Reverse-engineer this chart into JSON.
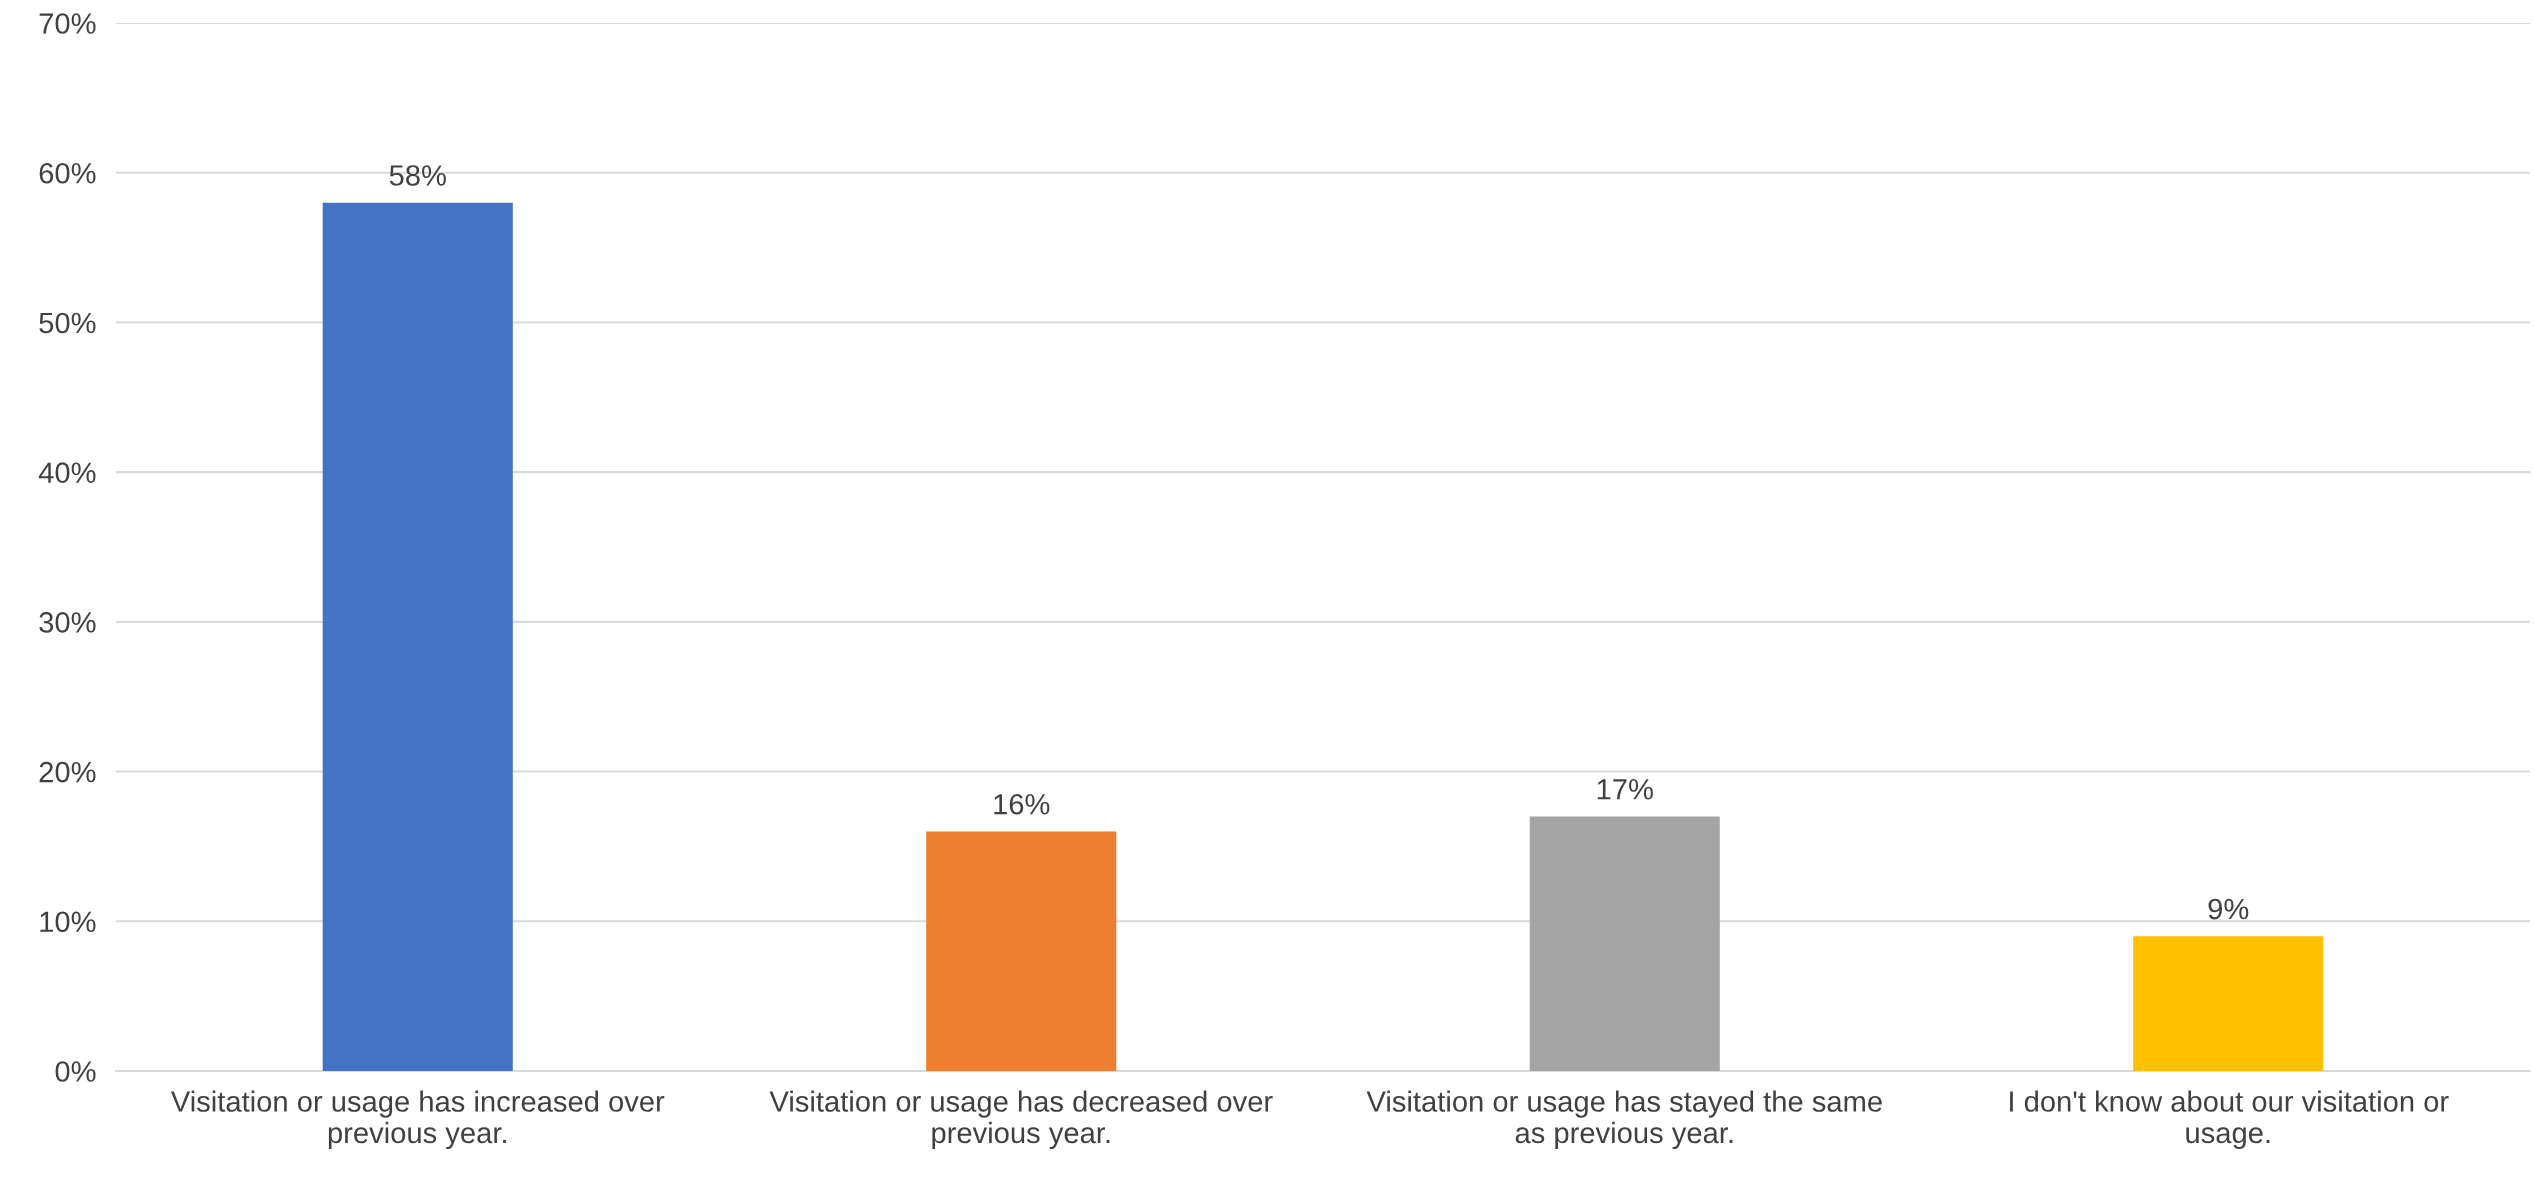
{
  "chart_data": {
    "type": "bar",
    "categories": [
      "Visitation or usage has increased over previous year.",
      "Visitation or usage has decreased over previous year.",
      "Visitation or usage has stayed the same as previous year.",
      "I don't know about our visitation or usage."
    ],
    "values": [
      58,
      16,
      17,
      9
    ],
    "colors": [
      "#4472c4",
      "#ed7d31",
      "#a5a5a5",
      "#ffc000"
    ],
    "value_labels": [
      "58%",
      "16%",
      "17%",
      "9%"
    ],
    "ylim": [
      0,
      70
    ],
    "yticks": [
      {
        "value": 0,
        "label": "0%"
      },
      {
        "value": 10,
        "label": "10%"
      },
      {
        "value": 20,
        "label": "20%"
      },
      {
        "value": 30,
        "label": "30%"
      },
      {
        "value": 40,
        "label": "40%"
      },
      {
        "value": 50,
        "label": "50%"
      },
      {
        "value": 60,
        "label": "60%"
      },
      {
        "value": 70,
        "label": "70%"
      }
    ],
    "grid": "y"
  }
}
